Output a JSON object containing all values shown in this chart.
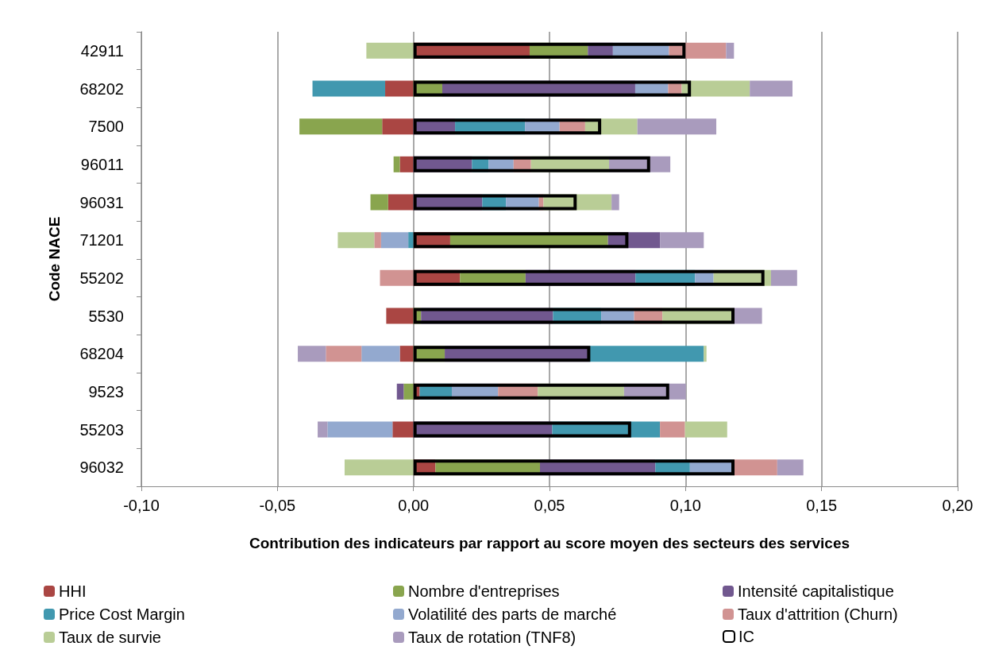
{
  "chart_data": [
    {
      "type": "bar",
      "orientation": "horizontal",
      "stacked": true,
      "xlabel": "Contribution des indicateurs par rapport au score moyen des secteurs des services",
      "ylabel": "Code NACE",
      "categories": [
        "42911",
        "68202",
        "7500",
        "96011",
        "96031",
        "71201",
        "55202",
        "5530",
        "68204",
        "9523",
        "55203",
        "96032"
      ],
      "series": [
        {
          "name": "HHI",
          "color": "#aa4643",
          "values": [
            0.0427,
            -0.0104,
            -0.0115,
            -0.005,
            -0.0093,
            0.0135,
            0.0171,
            -0.01,
            -0.005,
            0.0023,
            -0.0077,
            0.0081
          ]
        },
        {
          "name": "Nombre d'entreprises",
          "color": "#89a54e",
          "values": [
            0.0214,
            0.0106,
            -0.0304,
            -0.0023,
            -0.0065,
            0.058,
            0.0241,
            0.0028,
            0.0115,
            -0.0036,
            null,
            0.0384
          ]
        },
        {
          "name": "Intensité capitalistique",
          "color": "#71588f",
          "values": [
            0.0092,
            0.0709,
            0.0153,
            0.0215,
            0.0253,
            0.0191,
            0.0404,
            0.0485,
            0.053,
            -0.0025,
            0.051,
            0.0424
          ]
        },
        {
          "name": "Price Cost Margin",
          "color": "#4198af",
          "values": [
            null,
            -0.0267,
            0.0257,
            0.0061,
            0.0087,
            -0.0019,
            0.0219,
            0.0177,
            0.0422,
            0.0118,
            0.0396,
            0.0127
          ]
        },
        {
          "name": "Volatilité des parts de marché",
          "color": "#93a9cf",
          "values": [
            0.0206,
            0.0121,
            0.0127,
            0.0092,
            0.0121,
            -0.01,
            0.0068,
            0.0121,
            -0.0141,
            0.017,
            -0.0239,
            0.0155
          ]
        },
        {
          "name": "Taux d'attrition (Churn)",
          "color": "#d19392",
          "values": [
            0.021,
            0.005,
            0.0094,
            0.0064,
            0.0017,
            -0.0025,
            -0.0123,
            0.0104,
            -0.0131,
            0.0146,
            0.0092,
            0.0166
          ]
        },
        {
          "name": "Taux de survie",
          "color": "#b9cd96",
          "values": [
            -0.0173,
            0.025,
            0.0192,
            0.0287,
            0.025,
            -0.0134,
            0.0211,
            0.0257,
            0.001,
            0.0317,
            0.0155,
            -0.0253
          ]
        },
        {
          "name": "Taux de rotation (TNF8)",
          "color": "#a99bbd",
          "values": [
            0.0029,
            0.0157,
            0.029,
            0.0225,
            0.0028,
            0.0161,
            0.0096,
            0.0109,
            -0.0103,
            0.0227,
            -0.0036,
            0.0096
          ]
        }
      ],
      "xlim": [
        -0.1,
        0.2
      ],
      "xticks": [
        {
          "value": -0.1,
          "label": "-0,10"
        },
        {
          "value": -0.05,
          "label": "-0,05"
        },
        {
          "value": 0,
          "label": "0,00"
        },
        {
          "value": 0.05,
          "label": "0,05"
        },
        {
          "value": 0.1,
          "label": "0,10"
        },
        {
          "value": 0.15,
          "label": "0,15"
        },
        {
          "value": 0.2,
          "label": "0,20"
        }
      ],
      "grid": "x",
      "legend": "bottom"
    },
    {
      "type": "bar",
      "orientation": "horizontal",
      "categories": [
        "42911",
        "68202",
        "7500",
        "96011",
        "96031",
        "71201",
        "55202",
        "5530",
        "68204",
        "9523",
        "55203",
        "96032"
      ],
      "series": [
        {
          "name": "IC",
          "color": "#000000",
          "values": [
            0.1,
            0.102,
            0.069,
            0.087,
            0.06,
            0.079,
            0.129,
            0.118,
            0.065,
            0.094,
            0.08,
            0.118
          ]
        }
      ],
      "xlim": [
        -0.1,
        0.2
      ],
      "tick_labels": false,
      "legend": "bottom right"
    }
  ]
}
